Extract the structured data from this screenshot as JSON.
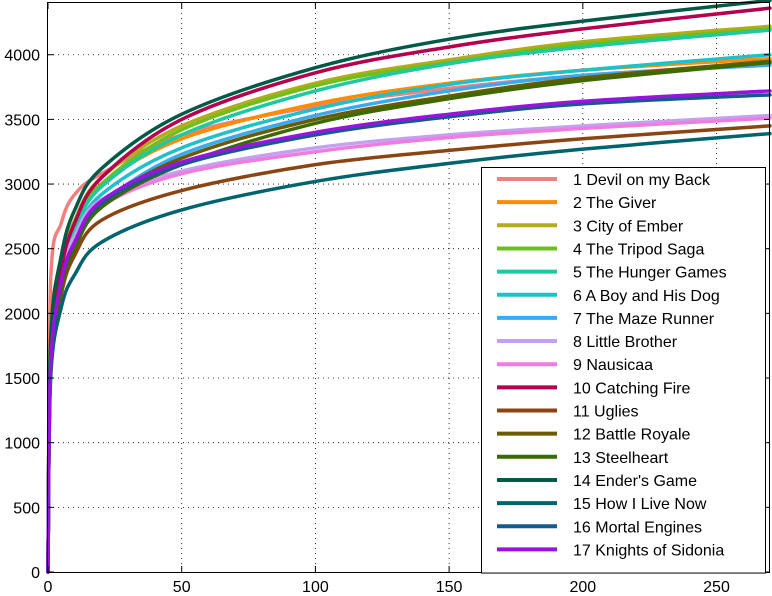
{
  "chart_data": {
    "type": "line",
    "title": "",
    "xlabel": "",
    "ylabel": "",
    "xlim": [
      0,
      270
    ],
    "ylim": [
      0,
      4400
    ],
    "grid": true,
    "legend_position": "bottom-right",
    "x_ticks": [
      0,
      50,
      100,
      150,
      200,
      250
    ],
    "y_ticks": [
      0,
      500,
      1000,
      1500,
      2000,
      2500,
      3000,
      3500,
      4000
    ],
    "x_tick_labels": [
      "0",
      "50",
      "100",
      "150",
      "200",
      "250"
    ],
    "y_tick_labels": [
      "0",
      "500",
      "1000",
      "1500",
      "2000",
      "2500",
      "3000",
      "3500",
      "4000"
    ],
    "series": [
      {
        "name": "1 Devil on my Back",
        "color": "#f08080",
        "values": [
          [
            0,
            0
          ],
          [
            1,
            2250
          ],
          [
            5,
            2700
          ],
          [
            10,
            2920
          ],
          [
            20,
            3080
          ],
          [
            50,
            3380
          ],
          [
            100,
            3600
          ],
          [
            150,
            3740
          ],
          [
            200,
            3840
          ],
          [
            270,
            3930
          ]
        ]
      },
      {
        "name": "2 The Giver",
        "color": "#ff8c00",
        "values": [
          [
            0,
            0
          ],
          [
            1,
            1850
          ],
          [
            5,
            2400
          ],
          [
            10,
            2700
          ],
          [
            20,
            3000
          ],
          [
            50,
            3350
          ],
          [
            100,
            3620
          ],
          [
            150,
            3780
          ],
          [
            200,
            3880
          ],
          [
            270,
            3970
          ]
        ]
      },
      {
        "name": "3 City of Ember",
        "color": "#b4aa1e",
        "values": [
          [
            0,
            0
          ],
          [
            1,
            1800
          ],
          [
            5,
            2400
          ],
          [
            10,
            2720
          ],
          [
            20,
            3050
          ],
          [
            50,
            3450
          ],
          [
            100,
            3780
          ],
          [
            150,
            3960
          ],
          [
            200,
            4100
          ],
          [
            270,
            4220
          ]
        ]
      },
      {
        "name": "4 The Tripod Saga",
        "color": "#6dbf1a",
        "values": [
          [
            0,
            0
          ],
          [
            1,
            1750
          ],
          [
            5,
            2350
          ],
          [
            10,
            2680
          ],
          [
            20,
            3000
          ],
          [
            50,
            3420
          ],
          [
            100,
            3760
          ],
          [
            150,
            3940
          ],
          [
            200,
            4080
          ],
          [
            270,
            4200
          ]
        ]
      },
      {
        "name": "5 The Hunger Games",
        "color": "#1ec8a0",
        "values": [
          [
            0,
            0
          ],
          [
            1,
            1750
          ],
          [
            5,
            2350
          ],
          [
            10,
            2650
          ],
          [
            20,
            2980
          ],
          [
            50,
            3380
          ],
          [
            100,
            3720
          ],
          [
            150,
            3930
          ],
          [
            200,
            4060
          ],
          [
            270,
            4190
          ]
        ]
      },
      {
        "name": "6 A Boy and His Dog",
        "color": "#20c0c8",
        "values": [
          [
            0,
            0
          ],
          [
            1,
            1700
          ],
          [
            5,
            2300
          ],
          [
            10,
            2600
          ],
          [
            20,
            2920
          ],
          [
            50,
            3280
          ],
          [
            100,
            3580
          ],
          [
            150,
            3770
          ],
          [
            200,
            3880
          ],
          [
            270,
            4000
          ]
        ]
      },
      {
        "name": "7 The Maze Runner",
        "color": "#3aaaf0",
        "values": [
          [
            0,
            0
          ],
          [
            1,
            1650
          ],
          [
            5,
            2250
          ],
          [
            10,
            2550
          ],
          [
            20,
            2850
          ],
          [
            50,
            3230
          ],
          [
            100,
            3530
          ],
          [
            150,
            3720
          ],
          [
            200,
            3840
          ],
          [
            270,
            3920
          ]
        ]
      },
      {
        "name": "8 Little Brother",
        "color": "#c4a0f0",
        "values": [
          [
            0,
            0
          ],
          [
            1,
            1700
          ],
          [
            5,
            2300
          ],
          [
            10,
            2600
          ],
          [
            20,
            2880
          ],
          [
            50,
            3100
          ],
          [
            100,
            3280
          ],
          [
            150,
            3380
          ],
          [
            200,
            3450
          ],
          [
            270,
            3530
          ]
        ]
      },
      {
        "name": "9 Nausicaa",
        "color": "#f07ce0",
        "values": [
          [
            0,
            0
          ],
          [
            1,
            1650
          ],
          [
            5,
            2250
          ],
          [
            10,
            2550
          ],
          [
            20,
            2830
          ],
          [
            50,
            3080
          ],
          [
            100,
            3250
          ],
          [
            150,
            3360
          ],
          [
            200,
            3430
          ],
          [
            270,
            3510
          ]
        ]
      },
      {
        "name": "10 Catching Fire",
        "color": "#b4004e",
        "values": [
          [
            0,
            0
          ],
          [
            1,
            1700
          ],
          [
            5,
            2350
          ],
          [
            10,
            2700
          ],
          [
            20,
            3050
          ],
          [
            50,
            3500
          ],
          [
            100,
            3860
          ],
          [
            150,
            4060
          ],
          [
            200,
            4200
          ],
          [
            270,
            4360
          ]
        ]
      },
      {
        "name": "11 Uglies",
        "color": "#8b4513",
        "values": [
          [
            0,
            0
          ],
          [
            1,
            1550
          ],
          [
            5,
            2150
          ],
          [
            10,
            2450
          ],
          [
            20,
            2720
          ],
          [
            50,
            2950
          ],
          [
            100,
            3150
          ],
          [
            150,
            3260
          ],
          [
            200,
            3350
          ],
          [
            270,
            3450
          ]
        ]
      },
      {
        "name": "12 Battle Royale",
        "color": "#6b5a00",
        "values": [
          [
            0,
            0
          ],
          [
            1,
            1600
          ],
          [
            5,
            2250
          ],
          [
            10,
            2550
          ],
          [
            20,
            2850
          ],
          [
            50,
            3200
          ],
          [
            100,
            3500
          ],
          [
            150,
            3680
          ],
          [
            200,
            3820
          ],
          [
            270,
            3950
          ]
        ]
      },
      {
        "name": "13 Steelheart",
        "color": "#3a6a00",
        "values": [
          [
            0,
            0
          ],
          [
            1,
            1600
          ],
          [
            5,
            2200
          ],
          [
            10,
            2500
          ],
          [
            20,
            2820
          ],
          [
            50,
            3150
          ],
          [
            100,
            3470
          ],
          [
            150,
            3660
          ],
          [
            200,
            3800
          ],
          [
            270,
            3940
          ]
        ]
      },
      {
        "name": "14 Ender's Game",
        "color": "#005a46",
        "values": [
          [
            0,
            0
          ],
          [
            1,
            1800
          ],
          [
            5,
            2450
          ],
          [
            10,
            2800
          ],
          [
            20,
            3120
          ],
          [
            50,
            3540
          ],
          [
            100,
            3900
          ],
          [
            150,
            4120
          ],
          [
            200,
            4260
          ],
          [
            270,
            4420
          ]
        ]
      },
      {
        "name": "15 How I Live Now",
        "color": "#00646e",
        "values": [
          [
            0,
            0
          ],
          [
            1,
            1500
          ],
          [
            5,
            2050
          ],
          [
            10,
            2300
          ],
          [
            20,
            2550
          ],
          [
            50,
            2800
          ],
          [
            100,
            3020
          ],
          [
            150,
            3160
          ],
          [
            200,
            3270
          ],
          [
            270,
            3390
          ]
        ]
      },
      {
        "name": "16 Mortal Engines",
        "color": "#145a8c",
        "values": [
          [
            0,
            0
          ],
          [
            1,
            1600
          ],
          [
            5,
            2250
          ],
          [
            10,
            2550
          ],
          [
            20,
            2850
          ],
          [
            50,
            3150
          ],
          [
            100,
            3380
          ],
          [
            150,
            3520
          ],
          [
            200,
            3620
          ],
          [
            270,
            3690
          ]
        ]
      },
      {
        "name": "17 Knights of Sidonia",
        "color": "#9614dc",
        "values": [
          [
            0,
            0
          ],
          [
            1,
            1600
          ],
          [
            5,
            2250
          ],
          [
            10,
            2550
          ],
          [
            20,
            2870
          ],
          [
            50,
            3170
          ],
          [
            100,
            3400
          ],
          [
            150,
            3540
          ],
          [
            200,
            3640
          ],
          [
            270,
            3720
          ]
        ]
      }
    ]
  }
}
